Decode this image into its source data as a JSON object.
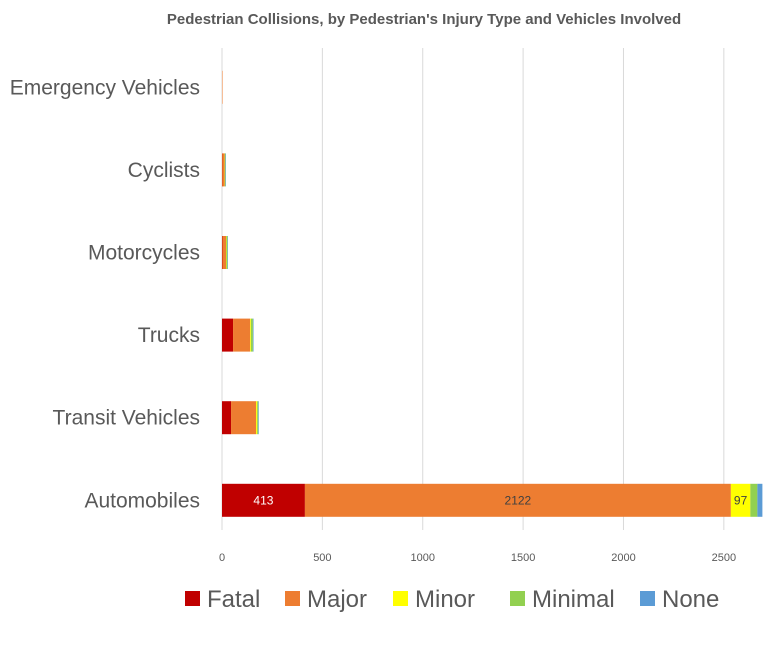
{
  "chart_data": {
    "type": "bar",
    "orientation": "horizontal",
    "stacked": true,
    "title": "Pedestrian Collisions, by Pedestrian's Injury Type and Vehicles Involved",
    "categories": [
      "Emergency Vehicles",
      "Cyclists",
      "Motorcycles",
      "Trucks",
      "Transit Vehicles",
      "Automobiles"
    ],
    "series": [
      {
        "name": "Fatal",
        "color": "#c00000",
        "values": [
          0,
          1,
          2,
          55,
          45,
          413
        ]
      },
      {
        "name": "Major",
        "color": "#ed7d31",
        "values": [
          1,
          12,
          18,
          85,
          125,
          2122
        ]
      },
      {
        "name": "Minor",
        "color": "#ffff00",
        "values": [
          0,
          1,
          2,
          4,
          5,
          97
        ]
      },
      {
        "name": "Minimal",
        "color": "#92d050",
        "values": [
          0,
          3,
          5,
          10,
          6,
          35
        ]
      },
      {
        "name": "None",
        "color": "#5b9bd5",
        "values": [
          0,
          1,
          2,
          3,
          2,
          25
        ]
      }
    ],
    "data_labels": [
      {
        "category": "Automobiles",
        "series": "Fatal",
        "text": "413"
      },
      {
        "category": "Automobiles",
        "series": "Major",
        "text": "2122"
      },
      {
        "category": "Automobiles",
        "series": "Minor",
        "text": "97"
      }
    ],
    "x_ticks": [
      "0",
      "500",
      "1000",
      "1500",
      "2000",
      "2500"
    ],
    "xlim": [
      0,
      2700
    ],
    "grid": true,
    "legend_position": "bottom"
  }
}
